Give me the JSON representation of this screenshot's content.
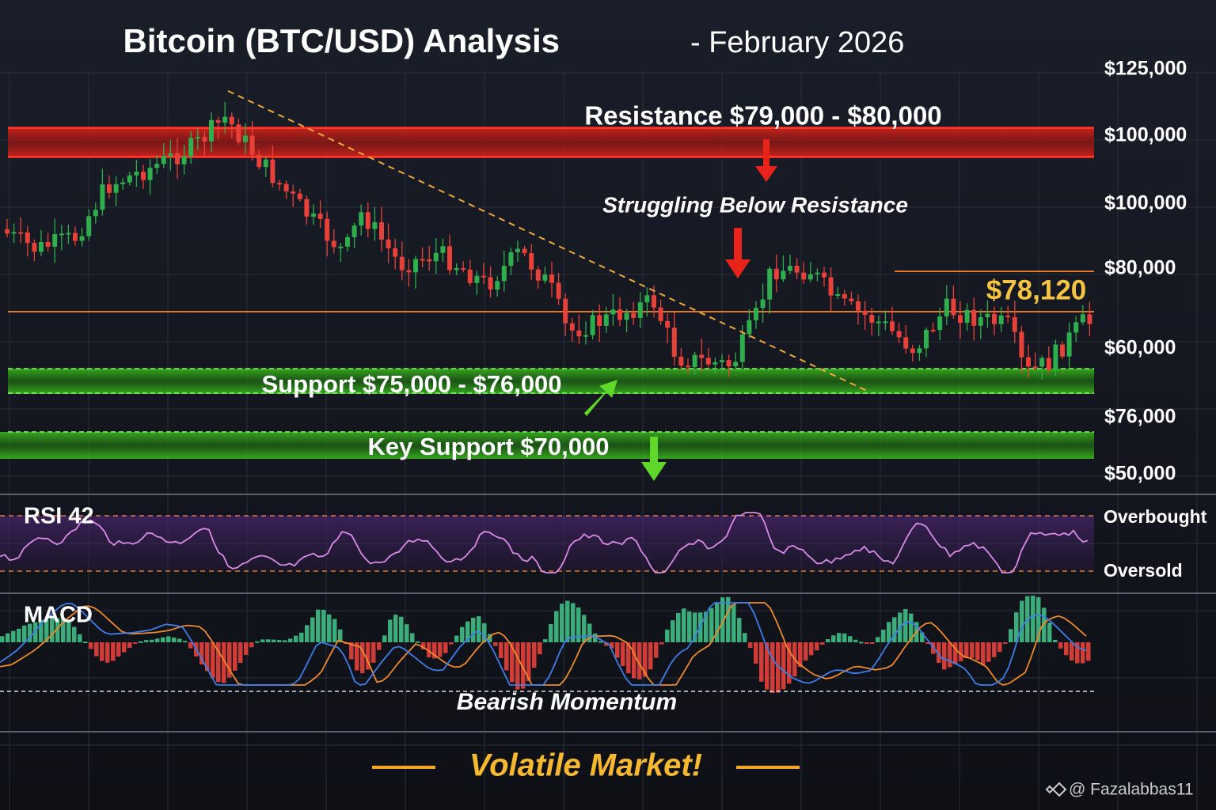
{
  "title": "Bitcoin (BTC/USD) Analysis",
  "subtitle": "- February 2026",
  "price_axis": [
    "$125,000",
    "$100,000",
    "$100,000",
    "$80,000",
    "$60,000",
    "$76,000",
    "$50,000"
  ],
  "resistance": "Resistance $79,000 - $80,000",
  "resistance_note": "Struggling Below Resistance",
  "current_price": "$78,120",
  "support": "Support $75,000 - $76,000",
  "key_support": "Key Support  $70,000",
  "rsi": {
    "label": "RSI 42",
    "overbought": "Overbought",
    "oversold": "Oversold"
  },
  "macd": {
    "label": "MACD",
    "note": "Bearish Momentum"
  },
  "footer": "Volatile Market!",
  "watermark": "@ Fazalabbas11"
}
